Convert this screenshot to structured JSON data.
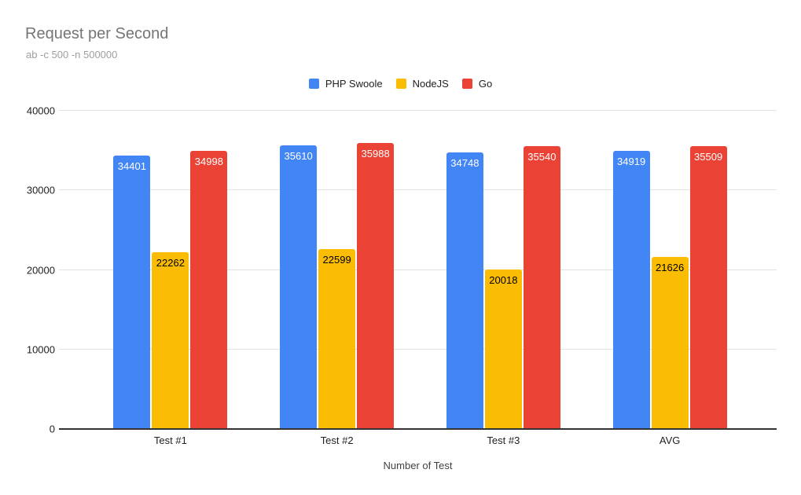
{
  "header": {
    "title": "Request per Second",
    "subtitle": "ab -c 500 -n 500000"
  },
  "chart_data": {
    "type": "bar",
    "title": "Request per Second",
    "subtitle": "ab -c 500 -n 500000",
    "categories": [
      "Test #1",
      "Test #2",
      "Test #3",
      "AVG"
    ],
    "series": [
      {
        "name": "PHP Swoole",
        "color": "#4285F4",
        "label_color": "#ffffff",
        "values": [
          34401,
          35610,
          34748,
          34919
        ]
      },
      {
        "name": "NodeJS",
        "color": "#FBBC04",
        "label_color": "#000000",
        "values": [
          22262,
          22599,
          20018,
          21626
        ]
      },
      {
        "name": "Go",
        "color": "#EA4335",
        "label_color": "#ffffff",
        "values": [
          34998,
          35988,
          35540,
          35509
        ]
      }
    ],
    "xlabel": "Number of Test",
    "ylabel": "",
    "ylim": [
      0,
      40000
    ],
    "yticks": [
      0,
      10000,
      20000,
      30000,
      40000
    ],
    "grid": true,
    "legend_position": "top",
    "bar_labels": true
  },
  "colors": {
    "background": "#ffffff",
    "gridline": "#e3e3e3",
    "baseline": "#333333",
    "title": "#757575",
    "subtitle": "#9e9e9e",
    "axis_label": "#212121",
    "axis_title": "#424242",
    "legend_text": "#212121"
  }
}
